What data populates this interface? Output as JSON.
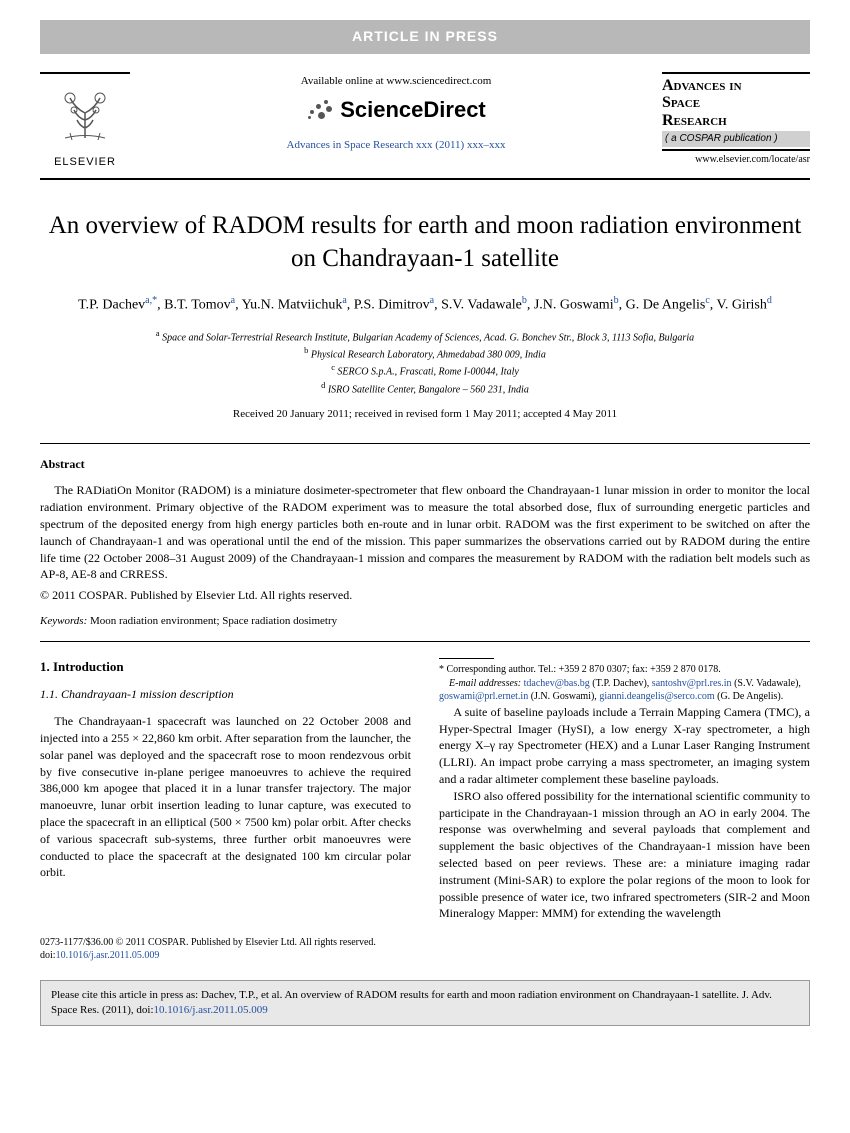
{
  "banner": "ARTICLE IN PRESS",
  "header": {
    "elsevier": "ELSEVIER",
    "available": "Available online at www.sciencedirect.com",
    "sd": "ScienceDirect",
    "journal_ref": "Advances in Space Research xxx (2011) xxx–xxx",
    "journal_name_l1": "Advances in",
    "journal_name_l2": "Space",
    "journal_name_l3": "Research",
    "cospar": "( a COSPAR publication )",
    "locate": "www.elsevier.com/locate/asr"
  },
  "title": "An overview of RADOM results for earth and moon radiation environment on Chandrayaan-1 satellite",
  "authors_html": "T.P. Dachev<sup>a,*</sup>, B.T. Tomov<sup>a</sup>, Yu.N. Matviichuk<sup>a</sup>, P.S. Dimitrov<sup>a</sup>, S.V. Vadawale<sup>b</sup>, J.N. Goswami<sup>b</sup>, G. De Angelis<sup>c</sup>, V. Girish<sup>d</sup>",
  "affiliations": {
    "a": "Space and Solar-Terrestrial Research Institute, Bulgarian Academy of Sciences, Acad. G. Bonchev Str., Block 3, 1113 Sofia, Bulgaria",
    "b": "Physical Research Laboratory, Ahmedabad 380 009, India",
    "c": "SERCO S.p.A., Frascati, Rome I-00044, Italy",
    "d": "ISRO Satellite Center, Bangalore – 560 231, India"
  },
  "dates": "Received 20 January 2011; received in revised form 1 May 2011; accepted 4 May 2011",
  "abstract_head": "Abstract",
  "abstract": "The RADiatiOn Monitor (RADOM) is a miniature dosimeter-spectrometer that flew onboard the Chandrayaan-1 lunar mission in order to monitor the local radiation environment. Primary objective of the RADOM experiment was to measure the total absorbed dose, flux of surrounding energetic particles and spectrum of the deposited energy from high energy particles both en-route and in lunar orbit. RADOM was the first experiment to be switched on after the launch of Chandrayaan-1 and was operational until the end of the mission. This paper summarizes the observations carried out by RADOM during the entire life time (22 October 2008–31 August 2009) of the Chandrayaan-1 mission and compares the measurement by RADOM with the radiation belt models such as AP-8, AE-8 and CRRESS.",
  "copyright": "© 2011 COSPAR. Published by Elsevier Ltd. All rights reserved.",
  "keywords_label": "Keywords:",
  "keywords": "Moon radiation environment; Space radiation dosimetry",
  "sec1": "1. Introduction",
  "sec1_1": "1.1. Chandrayaan-1 mission description",
  "p1": "The Chandrayaan-1 spacecraft was launched on 22 October 2008 and injected into a 255 × 22,860 km orbit. After separation from the launcher, the solar panel was deployed and the spacecraft rose to moon rendezvous orbit by five consecutive in-plane perigee manoeuvres to achieve the required 386,000 km apogee that placed it in a lunar transfer trajectory. The major manoeuvre, lunar orbit insertion leading to lunar capture, was executed to place the spacecraft in an elliptical (500 × 7500 km) polar orbit. After checks of various spacecraft sub-systems, three further orbit manoeuvres were conducted to place the spacecraft at the designated 100 km circular polar orbit.",
  "p2": "A suite of baseline payloads include a Terrain Mapping Camera (TMC), a Hyper-Spectral Imager (HySI), a low energy X-ray spectrometer, a high energy X–γ ray Spectrometer (HEX) and a Lunar Laser Ranging Instrument (LLRI). An impact probe carrying a mass spectrometer, an imaging system and a radar altimeter complement these baseline payloads.",
  "p3": "ISRO also offered possibility for the international scientific community to participate in the Chandrayaan-1 mission through an AO in early 2004. The response was overwhelming and several payloads that complement and supplement the basic objectives of the Chandrayaan-1 mission have been selected based on peer reviews. These are: a miniature imaging radar instrument (Mini-SAR) to explore the polar regions of the moon to look for possible presence of water ice, two infrared spectrometers (SIR-2 and Moon Mineralogy Mapper: MMM) for extending the wavelength",
  "footnote": {
    "corresp": "* Corresponding author. Tel.: +359 2 870 0307; fax: +359 2 870 0178.",
    "emails_label": "E-mail addresses:",
    "e1": "tdachev@bas.bg",
    "e1n": "(T.P. Dachev),",
    "e2": "santoshv@prl.res.in",
    "e2n": "(S.V. Vadawale),",
    "e3": "goswami@prl.ernet.in",
    "e3n": "(J.N. Goswami),",
    "e4": "gianni.deangelis@serco.com",
    "e4n": "(G. De Angelis)."
  },
  "footer": {
    "line1": "0273-1177/$36.00 © 2011 COSPAR. Published by Elsevier Ltd. All rights reserved.",
    "doi_label": "doi:",
    "doi": "10.1016/j.asr.2011.05.009"
  },
  "cite": {
    "text": "Please cite this article in press as: Dachev, T.P., et al. An overview of RADOM results for earth and moon radiation environment on Chandrayaan-1 satellite. J. Adv. Space Res. (2011), doi:",
    "doi": "10.1016/j.asr.2011.05.009"
  }
}
